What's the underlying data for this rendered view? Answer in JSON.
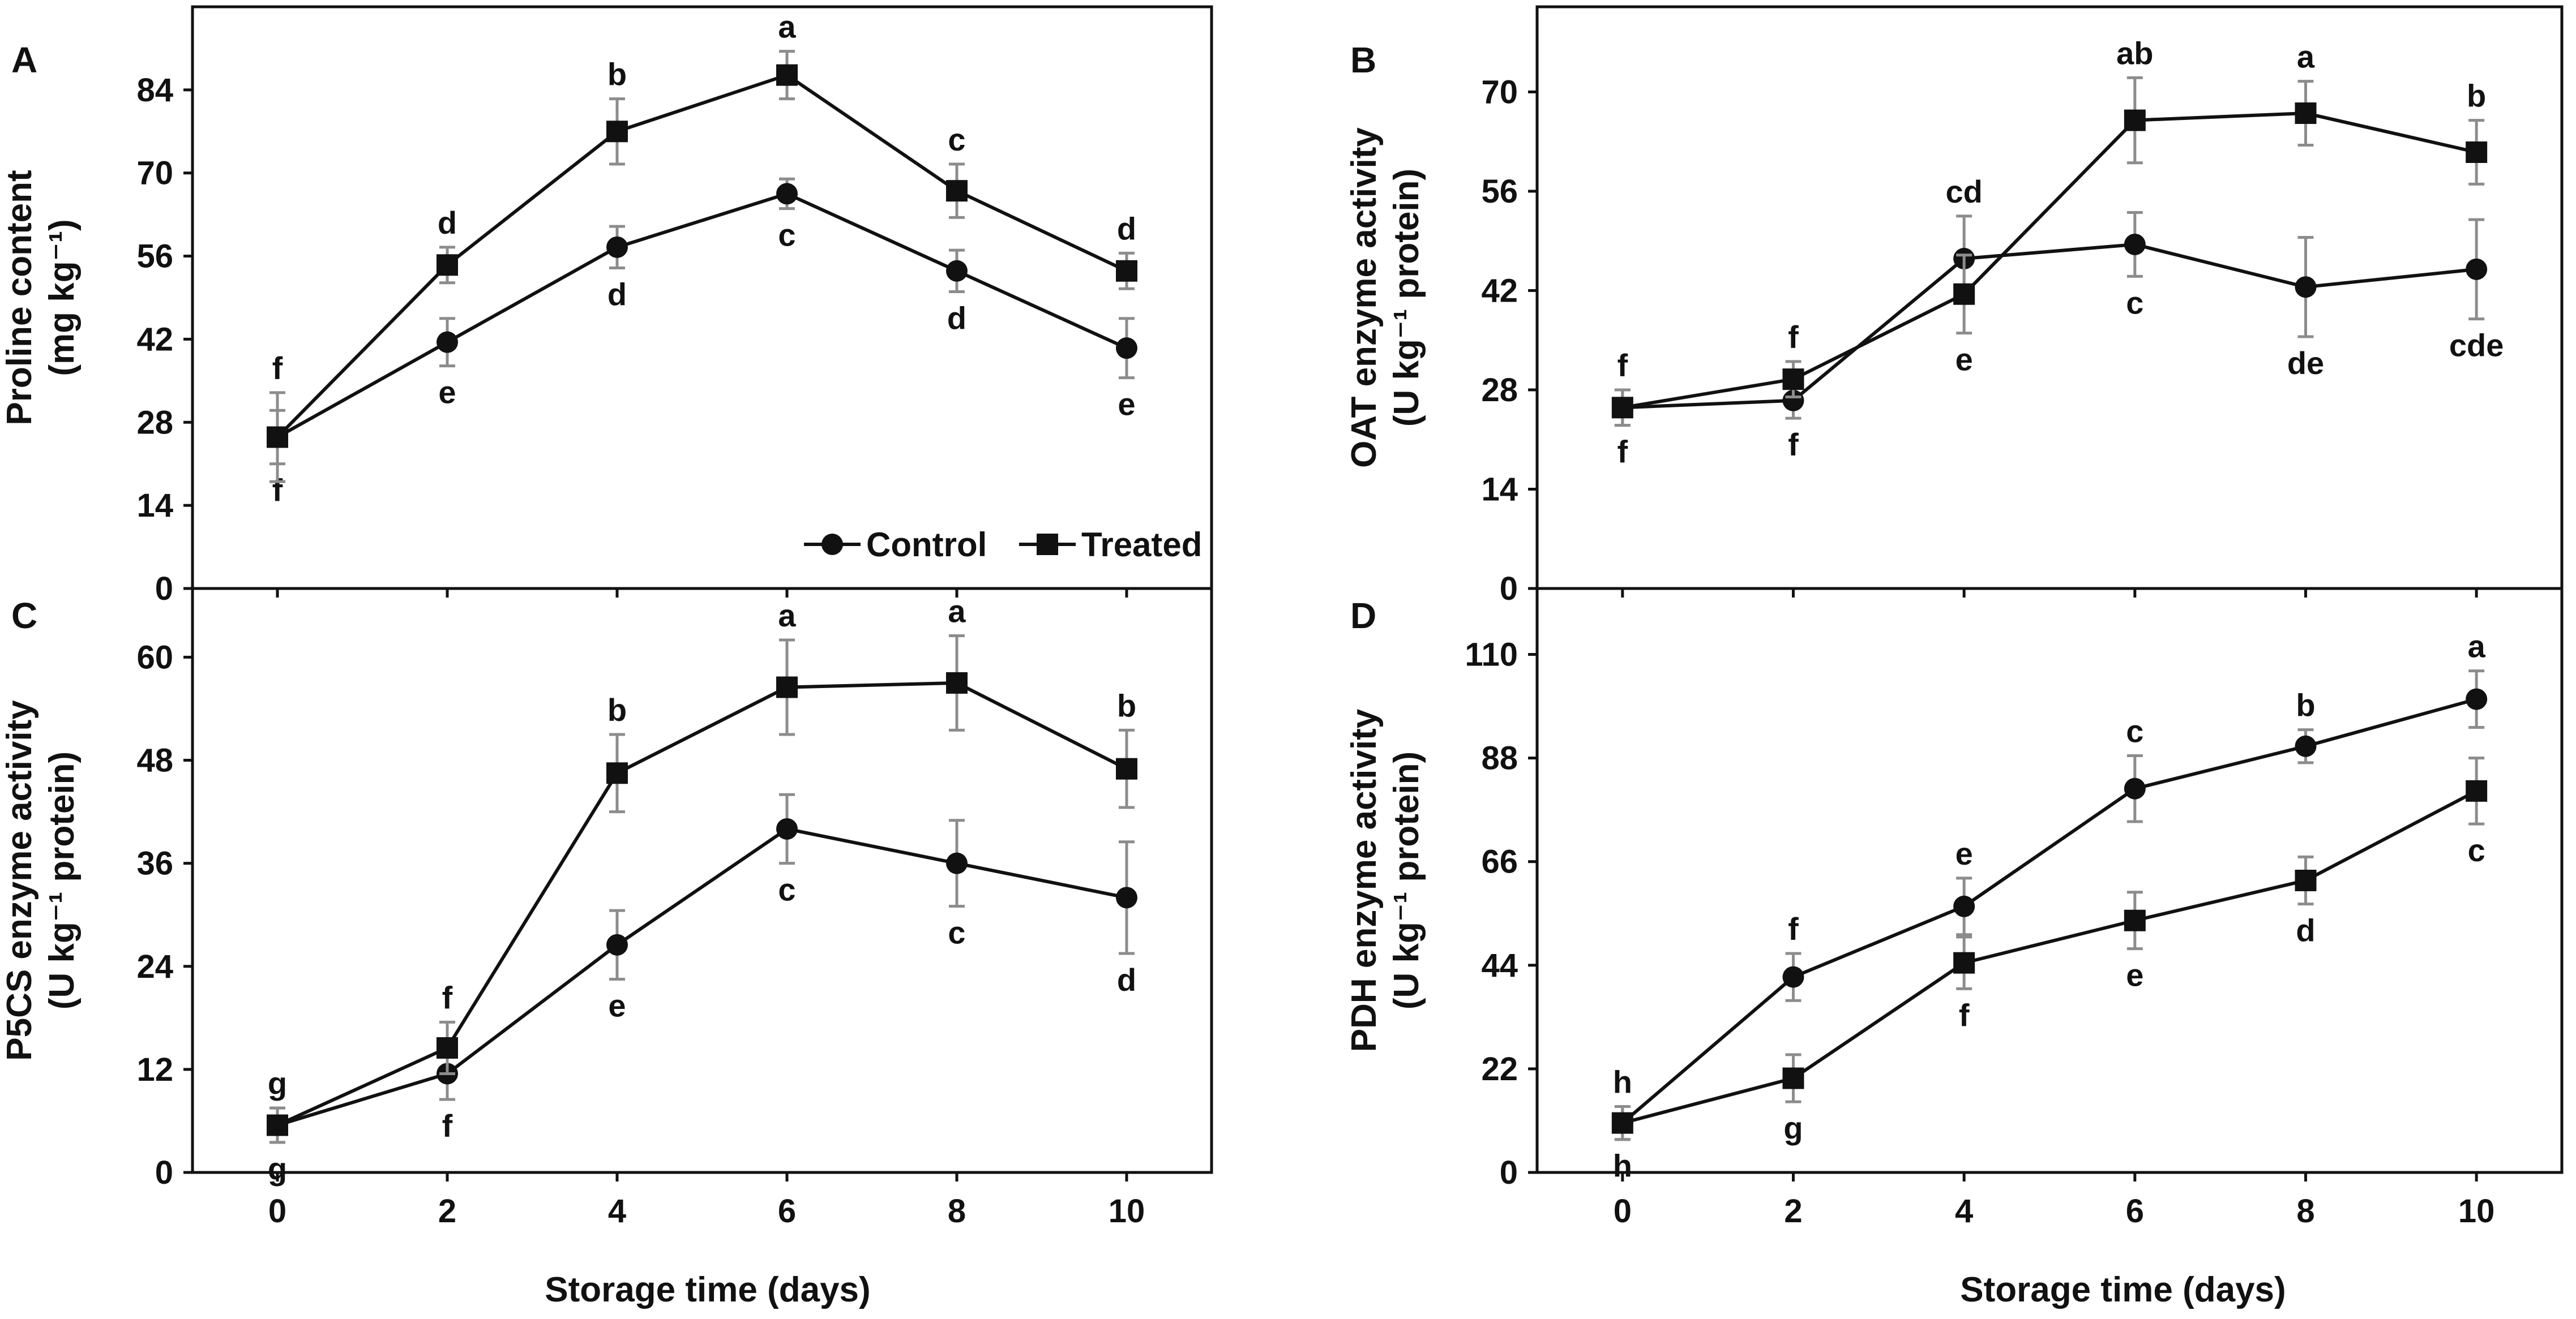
{
  "figure": {
    "xlabel": "Storage time (days)",
    "legend": [
      {
        "name": "Control",
        "marker": "circle"
      },
      {
        "name": "Treated",
        "marker": "square"
      }
    ],
    "colors": {
      "line": "#111111",
      "error_bar": "#8c8c8c",
      "axis": "#111111",
      "background": "#ffffff"
    }
  },
  "chart_data": [
    {
      "id": "A",
      "letter": "A",
      "type": "line",
      "ylabel": "Proline content",
      "ylabel_unit": "(mg kg⁻¹)",
      "x": [
        0,
        2,
        4,
        6,
        8,
        10
      ],
      "xlim": [
        -1,
        11
      ],
      "ylim": [
        0,
        98
      ],
      "yticks": [
        0,
        14,
        28,
        42,
        56,
        70,
        84
      ],
      "show_xticks": false,
      "legend_position": "bottom-right",
      "series": [
        {
          "name": "Control",
          "marker": "circle",
          "values": [
            25.5,
            41.5,
            57.5,
            66.5,
            53.5,
            40.5
          ],
          "errors": [
            4.5,
            4.0,
            3.5,
            2.5,
            3.5,
            5.0
          ],
          "letters": [
            "f",
            "e",
            "d",
            "c",
            "d",
            "e"
          ],
          "letter_pos": [
            "below",
            "below",
            "below",
            "below",
            "below",
            "below"
          ]
        },
        {
          "name": "Treated",
          "marker": "square",
          "values": [
            25.5,
            54.5,
            77.0,
            86.5,
            67.0,
            53.5
          ],
          "errors": [
            7.5,
            3.0,
            5.5,
            4.0,
            4.5,
            3.0
          ],
          "letters": [
            "f",
            "d",
            "b",
            "a",
            "c",
            "d"
          ],
          "letter_pos": [
            "above",
            "above",
            "above",
            "above",
            "above",
            "above"
          ]
        }
      ]
    },
    {
      "id": "B",
      "letter": "B",
      "type": "line",
      "ylabel": "OAT enzyme activity",
      "ylabel_unit": "(U kg⁻¹ protein)",
      "x": [
        0,
        2,
        4,
        6,
        8,
        10
      ],
      "xlim": [
        -1,
        11
      ],
      "ylim": [
        0,
        82
      ],
      "yticks": [
        0,
        14,
        28,
        42,
        56,
        70
      ],
      "show_xticks": false,
      "legend_position": "none",
      "series": [
        {
          "name": "Control",
          "marker": "circle",
          "values": [
            25.5,
            26.5,
            46.5,
            48.5,
            42.5,
            45.0
          ],
          "errors": [
            2.5,
            2.5,
            6.0,
            4.5,
            7.0,
            7.0
          ],
          "letters": [
            "f",
            "f",
            "cd",
            "c",
            "de",
            "cde"
          ],
          "letter_pos": [
            "below",
            "below",
            "above",
            "below",
            "below",
            "below"
          ]
        },
        {
          "name": "Treated",
          "marker": "square",
          "values": [
            25.5,
            29.5,
            41.5,
            66.0,
            67.0,
            61.5
          ],
          "errors": [
            2.5,
            2.5,
            5.5,
            6.0,
            4.5,
            4.5
          ],
          "letters": [
            "f",
            "f",
            "e",
            "ab",
            "a",
            "b"
          ],
          "letter_pos": [
            "above",
            "above",
            "below",
            "above",
            "above",
            "above"
          ]
        }
      ]
    },
    {
      "id": "C",
      "letter": "C",
      "type": "line",
      "ylabel": "P5CS enzyme activity",
      "ylabel_unit": "(U kg⁻¹ protein)",
      "x": [
        0,
        2,
        4,
        6,
        8,
        10
      ],
      "xlim": [
        -1,
        11
      ],
      "ylim": [
        0,
        68
      ],
      "yticks": [
        0,
        12,
        24,
        36,
        48,
        60
      ],
      "show_xticks": true,
      "legend_position": "none",
      "series": [
        {
          "name": "Control",
          "marker": "circle",
          "values": [
            5.5,
            11.5,
            26.5,
            40.0,
            36.0,
            32.0
          ],
          "errors": [
            2.0,
            3.0,
            4.0,
            4.0,
            5.0,
            6.5
          ],
          "letters": [
            "g",
            "f",
            "e",
            "c",
            "c",
            "d"
          ],
          "letter_pos": [
            "below",
            "below",
            "below",
            "below",
            "below",
            "below"
          ]
        },
        {
          "name": "Treated",
          "marker": "square",
          "values": [
            5.5,
            14.5,
            46.5,
            56.5,
            57.0,
            47.0
          ],
          "errors": [
            2.0,
            3.0,
            4.5,
            5.5,
            5.5,
            4.5
          ],
          "letters": [
            "g",
            "f",
            "b",
            "a",
            "a",
            "b"
          ],
          "letter_pos": [
            "above",
            "above",
            "above",
            "above",
            "above",
            "above"
          ]
        }
      ]
    },
    {
      "id": "D",
      "letter": "D",
      "type": "line",
      "ylabel": "PDH enzyme activity",
      "ylabel_unit": "(U kg⁻¹ protein)",
      "x": [
        0,
        2,
        4,
        6,
        8,
        10
      ],
      "xlim": [
        -1,
        11
      ],
      "ylim": [
        0,
        124
      ],
      "yticks": [
        0,
        22,
        44,
        66,
        88,
        110
      ],
      "show_xticks": true,
      "legend_position": "none",
      "series": [
        {
          "name": "Control",
          "marker": "circle",
          "values": [
            10.5,
            41.5,
            56.5,
            81.5,
            90.5,
            100.5
          ],
          "errors": [
            3.5,
            5.0,
            6.0,
            7.0,
            3.5,
            6.0
          ],
          "letters": [
            "h",
            "f",
            "e",
            "c",
            "b",
            "a"
          ],
          "letter_pos": [
            "above",
            "above",
            "above",
            "above",
            "above",
            "above"
          ]
        },
        {
          "name": "Treated",
          "marker": "square",
          "values": [
            10.5,
            20.0,
            44.5,
            53.5,
            62.0,
            81.0
          ],
          "errors": [
            3.5,
            5.0,
            5.5,
            6.0,
            5.0,
            7.0
          ],
          "letters": [
            "h",
            "g",
            "f",
            "e",
            "d",
            "c"
          ],
          "letter_pos": [
            "below",
            "below",
            "below",
            "below",
            "below",
            "below"
          ]
        }
      ]
    }
  ]
}
